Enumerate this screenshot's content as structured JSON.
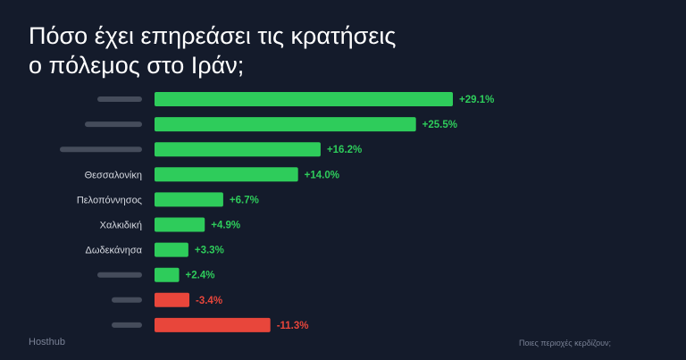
{
  "header": {
    "title_line1": "Πόσο έχει επηρεάσει τις κρατήσεις",
    "title_line2": "ο πόλεμος στο Ιράν;"
  },
  "footer": {
    "brand": "Hosthub",
    "tagline": "Ποιες περιοχές κερδίζουν;"
  },
  "colors": {
    "background": "#141b2b",
    "positive": "#2ecc5b",
    "negative": "#e8463b",
    "label_text": "#d6d9e0",
    "blurred_label": "#5a6170"
  },
  "chart_data": {
    "type": "bar",
    "orientation": "horizontal",
    "title": "Πόσο έχει επηρεάσει τις κρατήσεις ο πόλεμος στο Ιράν;",
    "unit": "%",
    "categories": [
      "",
      "",
      "",
      "Θεσσαλονίκη",
      "Πελοπόννησος",
      "Χαλκιδική",
      "Δωδεκάνησα",
      "",
      "",
      ""
    ],
    "value_labels": [
      "+29.1%",
      "+25.5%",
      "+16.2%",
      "+14.0%",
      "+6.7%",
      "+4.9%",
      "+3.3%",
      "+2.4%",
      "-3.4%",
      "-11.3%"
    ],
    "values": [
      29.1,
      25.5,
      16.2,
      14.0,
      6.7,
      4.9,
      3.3,
      2.4,
      -3.4,
      -11.3
    ],
    "xlim": [
      0,
      29.1
    ],
    "grid": false,
    "legend": "none"
  }
}
